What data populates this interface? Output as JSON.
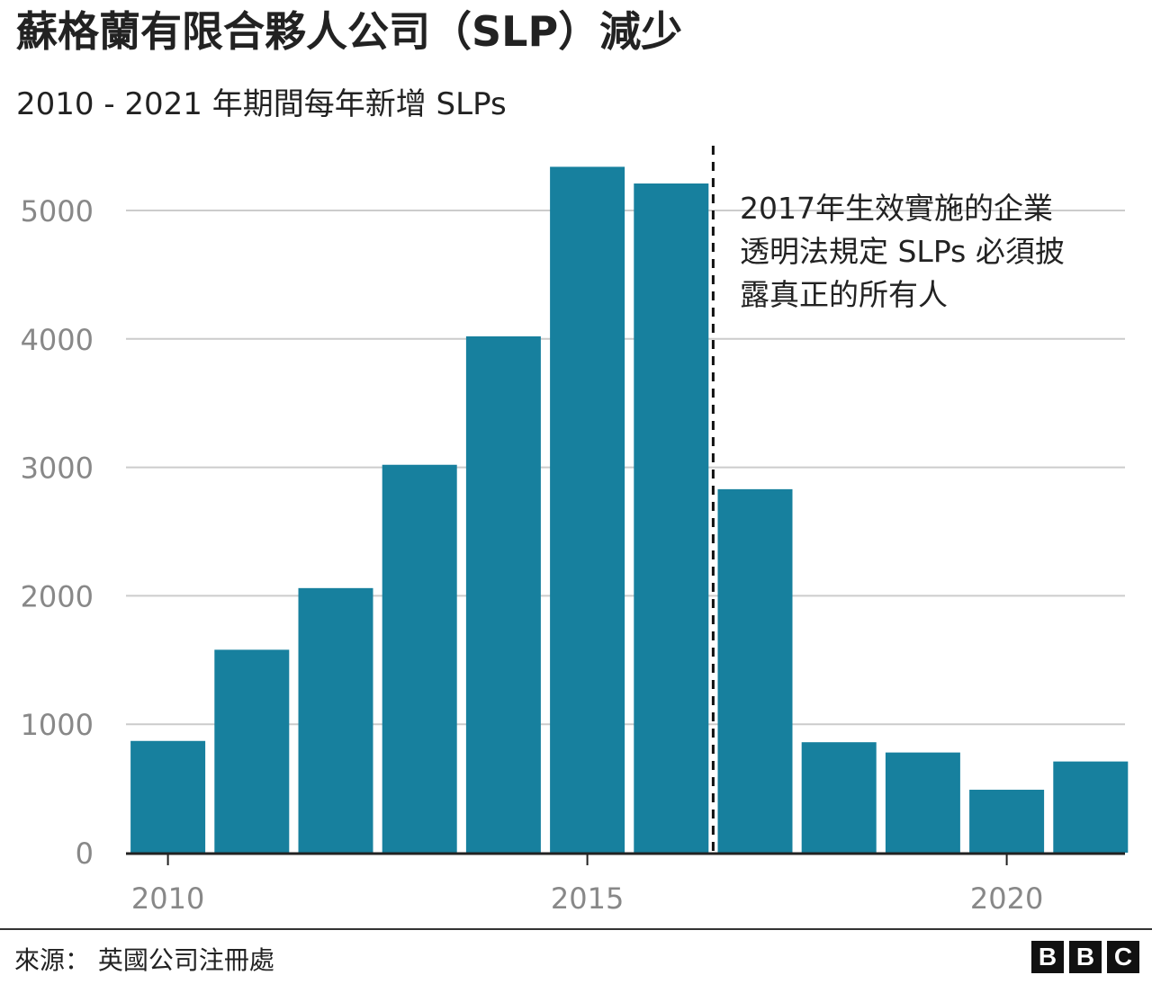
{
  "title": "蘇格蘭有限合夥人公司（SLP）減少",
  "subtitle": "2010 - 2021 年期間每年新增 SLPs",
  "source": "來源： 英國公司注冊處",
  "logo": [
    "B",
    "B",
    "C"
  ],
  "colors": {
    "bar": "#17809e",
    "grid": "#cccccc",
    "axis": "#222222"
  },
  "chart_data": {
    "type": "bar",
    "x": [
      2010,
      2011,
      2012,
      2013,
      2014,
      2015,
      2016,
      2017,
      2018,
      2019,
      2020,
      2021
    ],
    "values": [
      870,
      1580,
      2060,
      3020,
      4020,
      5340,
      5210,
      2830,
      860,
      780,
      490,
      710
    ],
    "xticks": [
      "2010",
      "2015",
      "2020"
    ],
    "yticks": [
      "0",
      "1000",
      "2000",
      "3000",
      "4000",
      "5000"
    ],
    "ylim": [
      0,
      5500
    ],
    "grid": true,
    "annotation": {
      "lines": [
        "2017年生效實施的企業",
        "透明法規定 SLPs 必須披",
        "露真正的所有人"
      ],
      "marker": "dashed vertical line between 2016 and 2017"
    }
  }
}
